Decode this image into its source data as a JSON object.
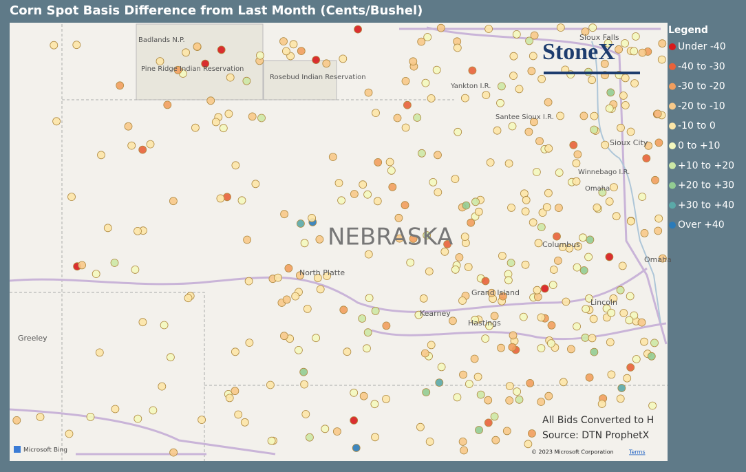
{
  "header": {
    "title": "Corn Spot Basis Difference from Last Month (Cents/Bushel)"
  },
  "legend": {
    "title": "Legend",
    "items": [
      {
        "label": "Under -40",
        "color": "#d7191c"
      },
      {
        "label": "-40 to -30",
        "color": "#e8623a"
      },
      {
        "label": "-30 to -20",
        "color": "#f29e5e"
      },
      {
        "label": "-20 to -10",
        "color": "#f8c98a"
      },
      {
        "label": "-10 to 0",
        "color": "#fde6a8"
      },
      {
        "label": "0 to +10",
        "color": "#f4f8bf"
      },
      {
        "label": "+10 to +20",
        "color": "#cde8a6"
      },
      {
        "label": "+20 to +30",
        "color": "#93cc92"
      },
      {
        "label": "+30 to +40",
        "color": "#5ba9a8"
      },
      {
        "label": "Over +40",
        "color": "#2b7bb9"
      }
    ]
  },
  "map": {
    "state_label": "NEBRASKA",
    "places": [
      {
        "label": "Badlands N.P."
      },
      {
        "label": "Pine Ridge Indian Reservation"
      },
      {
        "label": "Rosebud Indian Reservation"
      },
      {
        "label": "Yankton I.R."
      },
      {
        "label": "Santee Sioux I.R."
      },
      {
        "label": "Sioux Falls"
      },
      {
        "label": "Sioux City"
      },
      {
        "label": "Winnebago I.R."
      },
      {
        "label": "Omaha"
      },
      {
        "label": "Columbus"
      },
      {
        "label": "Omaha"
      },
      {
        "label": "Lincoln"
      },
      {
        "label": "North Platte"
      },
      {
        "label": "Grand Island"
      },
      {
        "label": "Kearney"
      },
      {
        "label": "Hastings"
      },
      {
        "label": "Greeley"
      }
    ]
  },
  "notes": {
    "conversion": "All Bids Converted to H",
    "source": "Source: DTN ProphetX",
    "brand": "StoneX",
    "bing": "Microsoft Bing",
    "copyright": "© 2023 Microsoft Corporation",
    "terms": "Terms"
  }
}
